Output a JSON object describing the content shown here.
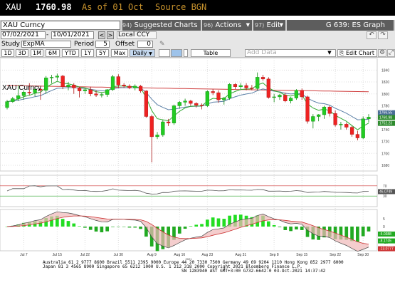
{
  "ticker": {
    "symbol": "XAU",
    "price": "1760.98",
    "as_of": "As of 01 Oct",
    "source": "Source BGN"
  },
  "toolbar1": {
    "security": "XAU Curncy",
    "suggested_num": "94)",
    "suggested_label": "Suggested Charts",
    "actions_num": "96)",
    "actions_label": "Actions",
    "edit_num": "97)",
    "edit_label": "Edit",
    "graph_title": "G 639: ES Graph"
  },
  "toolbar2": {
    "start_date": "07/02/2021",
    "end_date": "10/01/2021",
    "currency": "Local CCY"
  },
  "toolbar3": {
    "study_label": "Study",
    "study_value": "ExpMA",
    "period_label": "Period",
    "period_value": "5",
    "offset_label": "Offset",
    "offset_value": "0"
  },
  "toolbar4": {
    "periods": [
      "1D",
      "3D",
      "1M",
      "6M",
      "YTD",
      "1Y",
      "5Y",
      "Max"
    ],
    "frequency": "Daily",
    "table_label": "Table",
    "add_data_placeholder": "Add Data",
    "edit_chart_label": "Edit Chart"
  },
  "chart_title": "XAU Curncy",
  "price_axis": {
    "ticks": [
      "1840",
      "1820",
      "1800",
      "1780",
      "1760",
      "1740",
      "1720",
      "1700",
      "1680"
    ],
    "labels": [
      {
        "text": "1766.55",
        "color": "#4a6e96"
      },
      {
        "text": "1760.98",
        "color": "#2e8b2e"
      },
      {
        "text": "1752.23",
        "color": "#2e8b2e"
      }
    ]
  },
  "osc_axis": {
    "ticks": [
      "70",
      "30"
    ],
    "label": {
      "text": "46.0749",
      "color": "#555555"
    }
  },
  "macd_axis": {
    "ticks": [
      "5",
      "0",
      "-5",
      "-10"
    ],
    "labels": [
      {
        "text": "-5.0388",
        "color": "#22aa22"
      },
      {
        "text": "-8.1745",
        "color": "#22aa22"
      },
      {
        "text": "-13.0777",
        "color": "#cc3333"
      }
    ]
  },
  "x_axis": {
    "labels": [
      "Jul 7",
      "Jul 15",
      "Jul 22",
      "Jul 30",
      "Aug 9",
      "Aug 16",
      "Aug 23",
      "Aug 31",
      "Sep 8",
      "Sep 15",
      "Sep 22",
      "Sep 30"
    ],
    "year": "2021"
  },
  "footer": {
    "line1": "Australia 61 2 9777 8600  Brazil 5511 2395 9000  Europe 44 20 7330 7500  Germany 49 69 9204 1210  Hong Kong 852 2977 6000",
    "line2": "Japan 81 3 4565 8900        Singapore 65 6212 1000        U.S. 1 212 318 2000          Copyright 2021 Bloomberg Finance L.P.",
    "line3": "SN 1283940 AST  GMT+3:00 G732-6642-0 03-Oct-2021 14:37:42"
  },
  "colors": {
    "up_candle": "#22cc22",
    "down_candle": "#ee2222",
    "ma_fast": "#33aa33",
    "ma_mid": "#5a7fa6",
    "ma_slow": "#d04040"
  },
  "chart_data": {
    "type": "candlestick",
    "ylim": [
      1680,
      1850
    ],
    "x": [
      "Jul 2",
      "Jul 5",
      "Jul 6",
      "Jul 7",
      "Jul 8",
      "Jul 9",
      "Jul 12",
      "Jul 13",
      "Jul 14",
      "Jul 15",
      "Jul 16",
      "Jul 19",
      "Jul 20",
      "Jul 21",
      "Jul 22",
      "Jul 23",
      "Jul 26",
      "Jul 27",
      "Jul 28",
      "Jul 29",
      "Jul 30",
      "Aug 2",
      "Aug 3",
      "Aug 4",
      "Aug 5",
      "Aug 6",
      "Aug 9",
      "Aug 10",
      "Aug 11",
      "Aug 12",
      "Aug 13",
      "Aug 16",
      "Aug 17",
      "Aug 18",
      "Aug 19",
      "Aug 20",
      "Aug 23",
      "Aug 24",
      "Aug 25",
      "Aug 26",
      "Aug 27",
      "Aug 30",
      "Aug 31",
      "Sep 1",
      "Sep 2",
      "Sep 3",
      "Sep 6",
      "Sep 7",
      "Sep 8",
      "Sep 9",
      "Sep 10",
      "Sep 13",
      "Sep 14",
      "Sep 15",
      "Sep 16",
      "Sep 17",
      "Sep 20",
      "Sep 21",
      "Sep 22",
      "Sep 23",
      "Sep 24",
      "Sep 27",
      "Sep 28",
      "Sep 29",
      "Sep 30",
      "Oct 1"
    ],
    "ohlc": [
      [
        1777,
        1790,
        1774,
        1787
      ],
      [
        1787,
        1795,
        1785,
        1792
      ],
      [
        1792,
        1815,
        1788,
        1797
      ],
      [
        1797,
        1806,
        1790,
        1803
      ],
      [
        1803,
        1818,
        1798,
        1802
      ],
      [
        1802,
        1812,
        1796,
        1808
      ],
      [
        1808,
        1810,
        1790,
        1806
      ],
      [
        1806,
        1830,
        1800,
        1827
      ],
      [
        1827,
        1832,
        1818,
        1828
      ],
      [
        1828,
        1834,
        1822,
        1830
      ],
      [
        1830,
        1832,
        1808,
        1812
      ],
      [
        1812,
        1820,
        1806,
        1815
      ],
      [
        1815,
        1818,
        1800,
        1810
      ],
      [
        1810,
        1812,
        1794,
        1805
      ],
      [
        1805,
        1810,
        1800,
        1807
      ],
      [
        1807,
        1812,
        1796,
        1800
      ],
      [
        1800,
        1806,
        1795,
        1798
      ],
      [
        1798,
        1802,
        1794,
        1799
      ],
      [
        1799,
        1808,
        1795,
        1807
      ],
      [
        1807,
        1832,
        1805,
        1829
      ],
      [
        1829,
        1833,
        1810,
        1815
      ],
      [
        1815,
        1818,
        1810,
        1813
      ],
      [
        1813,
        1816,
        1808,
        1810
      ],
      [
        1810,
        1816,
        1806,
        1813
      ],
      [
        1813,
        1815,
        1802,
        1805
      ],
      [
        1805,
        1806,
        1760,
        1762
      ],
      [
        1762,
        1765,
        1685,
        1728
      ],
      [
        1728,
        1736,
        1724,
        1731
      ],
      [
        1731,
        1756,
        1728,
        1753
      ],
      [
        1753,
        1758,
        1746,
        1751
      ],
      [
        1751,
        1782,
        1748,
        1780
      ],
      [
        1780,
        1788,
        1775,
        1786
      ],
      [
        1786,
        1792,
        1780,
        1788
      ],
      [
        1788,
        1790,
        1780,
        1784
      ],
      [
        1784,
        1786,
        1777,
        1781
      ],
      [
        1781,
        1784,
        1774,
        1780
      ],
      [
        1780,
        1806,
        1778,
        1804
      ],
      [
        1804,
        1808,
        1798,
        1802
      ],
      [
        1802,
        1806,
        1785,
        1790
      ],
      [
        1790,
        1795,
        1782,
        1793
      ],
      [
        1793,
        1818,
        1790,
        1816
      ],
      [
        1816,
        1818,
        1808,
        1812
      ],
      [
        1812,
        1818,
        1808,
        1814
      ],
      [
        1814,
        1818,
        1806,
        1810
      ],
      [
        1810,
        1815,
        1806,
        1809
      ],
      [
        1809,
        1836,
        1806,
        1828
      ],
      [
        1828,
        1832,
        1822,
        1825
      ],
      [
        1825,
        1828,
        1792,
        1794
      ],
      [
        1794,
        1800,
        1786,
        1795
      ],
      [
        1795,
        1800,
        1790,
        1798
      ],
      [
        1798,
        1802,
        1786,
        1788
      ],
      [
        1788,
        1795,
        1784,
        1793
      ],
      [
        1793,
        1808,
        1790,
        1806
      ],
      [
        1806,
        1809,
        1790,
        1795
      ],
      [
        1795,
        1797,
        1750,
        1754
      ],
      [
        1754,
        1766,
        1742,
        1762
      ],
      [
        1762,
        1766,
        1754,
        1765
      ],
      [
        1765,
        1780,
        1758,
        1778
      ],
      [
        1778,
        1780,
        1762,
        1767
      ],
      [
        1767,
        1772,
        1745,
        1748
      ],
      [
        1748,
        1753,
        1740,
        1749
      ],
      [
        1749,
        1752,
        1740,
        1744
      ],
      [
        1744,
        1746,
        1728,
        1732
      ],
      [
        1732,
        1738,
        1722,
        1726
      ],
      [
        1726,
        1762,
        1724,
        1758
      ],
      [
        1758,
        1766,
        1752,
        1761
      ]
    ]
  }
}
